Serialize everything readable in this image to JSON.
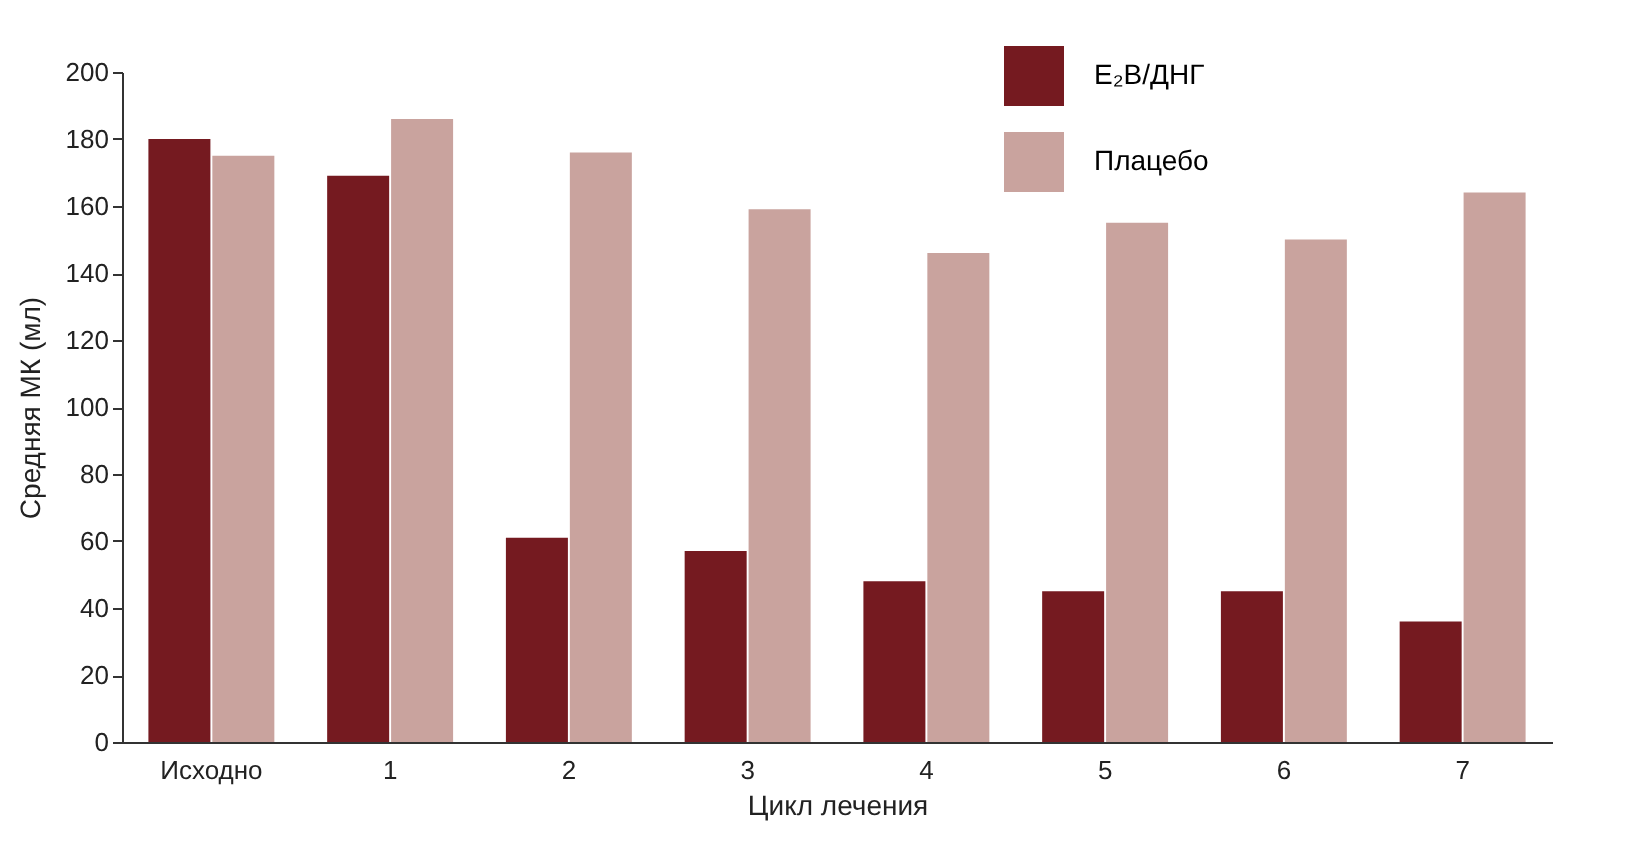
{
  "chart_data": {
    "type": "bar",
    "xlabel": "Цикл лечения",
    "ylabel": "Средняя МК (мл)",
    "categories": [
      "Исходно",
      "1",
      "2",
      "3",
      "4",
      "5",
      "6",
      "7"
    ],
    "series": [
      {
        "name": "E₂В/ДНГ",
        "color": "#751a20",
        "values": [
          180,
          169,
          61,
          57,
          48,
          45,
          45,
          36
        ]
      },
      {
        "name": "Плацебо",
        "color": "#c9a39e",
        "values": [
          175,
          186,
          176,
          159,
          146,
          155,
          150,
          164
        ]
      }
    ],
    "ylim": [
      0,
      200
    ],
    "yticks": [
      0,
      20,
      40,
      60,
      80,
      100,
      120,
      140,
      160,
      180,
      200
    ],
    "grid": false,
    "legend": "top right"
  }
}
